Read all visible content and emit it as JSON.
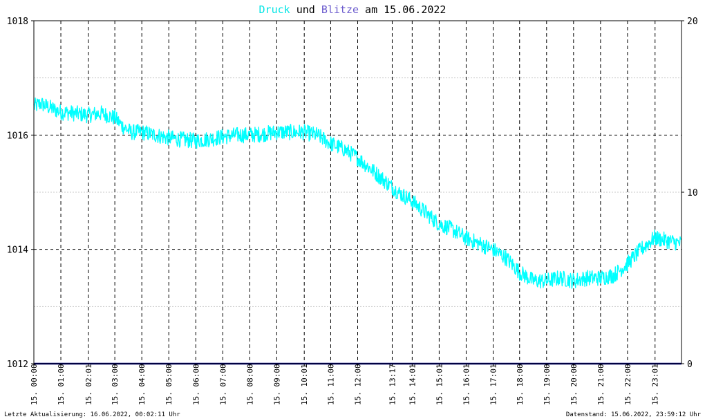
{
  "title": {
    "part1": "Druck",
    "part2": " und ",
    "part3": "Blitze",
    "part4": " am 15.06.2022",
    "colors": {
      "part1": "#00e5e5",
      "part2": "#000000",
      "part3": "#6a5acd",
      "part4": "#000000"
    }
  },
  "footer": {
    "left": "Letzte Aktualisierung: 16.06.2022, 00:02:11 Uhr",
    "right": "Datenstand: 15.06.2022, 23:59:12 Uhr"
  },
  "colors": {
    "pressure_line": "#00ffff",
    "lightning_line": "#000080",
    "grid_dash": "#000000",
    "grid_minor": "#c8c8c8",
    "frame": "#000000"
  },
  "chart_data": {
    "type": "line",
    "title": "Druck und Blitze am 15.06.2022",
    "x_ticks": [
      "15. 00:00",
      "15. 01:00",
      "15. 02:01",
      "15. 03:00",
      "15. 04:00",
      "15. 05:00",
      "15. 06:00",
      "15. 07:00",
      "15. 08:00",
      "15. 09:00",
      "15. 10:01",
      "15. 11:00",
      "15. 12:00",
      "15. 13:17",
      "15. 14:01",
      "15. 15:01",
      "15. 16:01",
      "15. 17:01",
      "15. 18:00",
      "15. 19:00",
      "15. 20:00",
      "15. 21:00",
      "15. 22:00",
      "15. 23:01"
    ],
    "x_tick_hours": [
      0,
      1,
      2.02,
      3,
      4,
      5,
      6,
      7,
      8,
      9,
      10.02,
      11,
      12,
      13.28,
      14.02,
      15.02,
      16.02,
      17.02,
      18,
      19,
      20,
      21,
      22,
      23.02
    ],
    "x_range_hours": [
      0,
      24
    ],
    "y_left": {
      "ticks": [
        "1012",
        "1014",
        "1016",
        "1018"
      ],
      "range": [
        1012,
        1018
      ]
    },
    "y_right": {
      "ticks": [
        "0",
        "10",
        "20"
      ],
      "range": [
        0,
        20
      ]
    },
    "grid": true,
    "series": [
      {
        "name": "Druck",
        "axis": "left",
        "hours": [
          0,
          0.25,
          0.5,
          0.75,
          1,
          1.5,
          2,
          2.5,
          3,
          3.3,
          3.6,
          4,
          4.5,
          5,
          5.5,
          6,
          6.5,
          7,
          7.5,
          8,
          8.5,
          9,
          9.5,
          10,
          10.5,
          11,
          11.5,
          12,
          12.5,
          13,
          13.5,
          14,
          14.5,
          15,
          15.5,
          16,
          16.5,
          17,
          17.5,
          18,
          18.5,
          19,
          19.5,
          20,
          20.5,
          21,
          21.5,
          22,
          22.5,
          23,
          23.5,
          24
        ],
        "values": [
          1016.5,
          1016.55,
          1016.5,
          1016.45,
          1016.4,
          1016.38,
          1016.35,
          1016.38,
          1016.3,
          1016.15,
          1016.05,
          1016.05,
          1016.0,
          1015.95,
          1015.92,
          1015.9,
          1015.93,
          1015.97,
          1016.0,
          1016.0,
          1016.02,
          1016.05,
          1016.05,
          1016.05,
          1016.0,
          1015.85,
          1015.75,
          1015.6,
          1015.4,
          1015.2,
          1015.0,
          1014.85,
          1014.65,
          1014.45,
          1014.35,
          1014.2,
          1014.1,
          1014.0,
          1013.85,
          1013.6,
          1013.45,
          1013.45,
          1013.5,
          1013.45,
          1013.5,
          1013.5,
          1013.55,
          1013.75,
          1014.0,
          1014.2,
          1014.15,
          1014.1
        ]
      },
      {
        "name": "Blitze",
        "axis": "right",
        "hours": [
          0,
          24
        ],
        "values": [
          0,
          0
        ]
      }
    ]
  }
}
